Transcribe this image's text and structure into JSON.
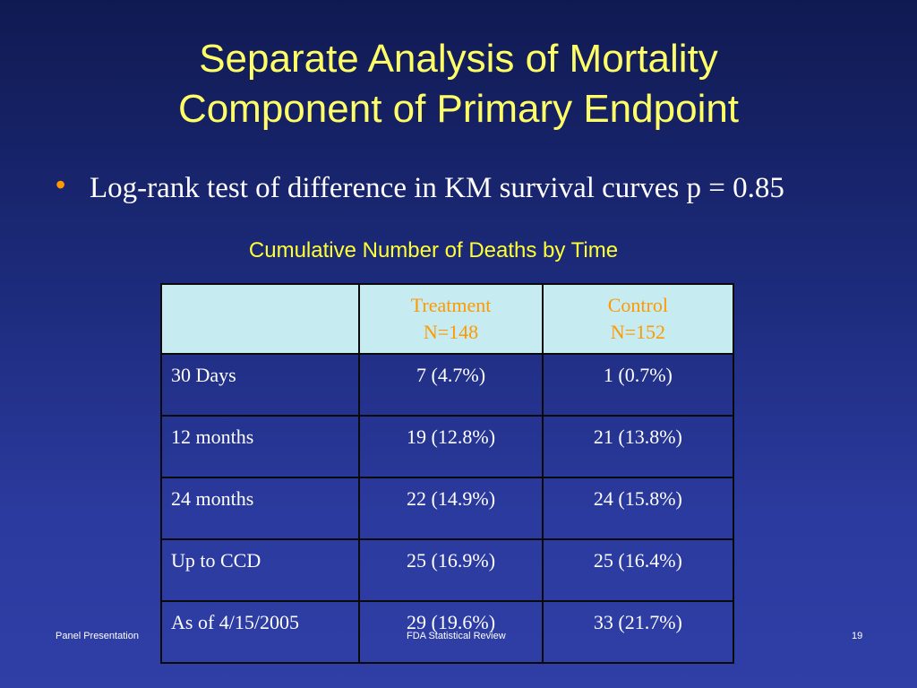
{
  "slide": {
    "title_line1": "Separate Analysis of Mortality",
    "title_line2": "Component of Primary Endpoint",
    "bullet_symbol": "•",
    "bullet_text": "Log-rank test of difference in KM survival curves p = 0.85",
    "table_caption": "Cumulative Number of Deaths by Time"
  },
  "table": {
    "headers": {
      "blank": "",
      "treatment_line1": "Treatment",
      "treatment_line2": "N=148",
      "control_line1": "Control",
      "control_line2": "N=152"
    },
    "rows": [
      {
        "label": "30 Days",
        "treatment": "7 (4.7%)",
        "control": "1 (0.7%)"
      },
      {
        "label": "12 months",
        "treatment": "19 (12.8%)",
        "control": "21 (13.8%)"
      },
      {
        "label": "24 months",
        "treatment": "22 (14.9%)",
        "control": "24 (15.8%)"
      },
      {
        "label": "Up to CCD",
        "treatment": "25 (16.9%)",
        "control": "25 (16.4%)"
      },
      {
        "label": "As of 4/15/2005",
        "treatment": "29 (19.6%)",
        "control": "33 (21.7%)"
      }
    ]
  },
  "footer": {
    "left": "Panel Presentation",
    "center": "FDA Statistical Review",
    "page_number": "19"
  },
  "colors": {
    "title": "#ffff66",
    "caption": "#ffff33",
    "bullet": "#ff9900",
    "header_text": "#ff9900",
    "header_bg": "#c6ecf2",
    "background_top": "#101a52",
    "background_bottom": "#2f3fa6"
  }
}
